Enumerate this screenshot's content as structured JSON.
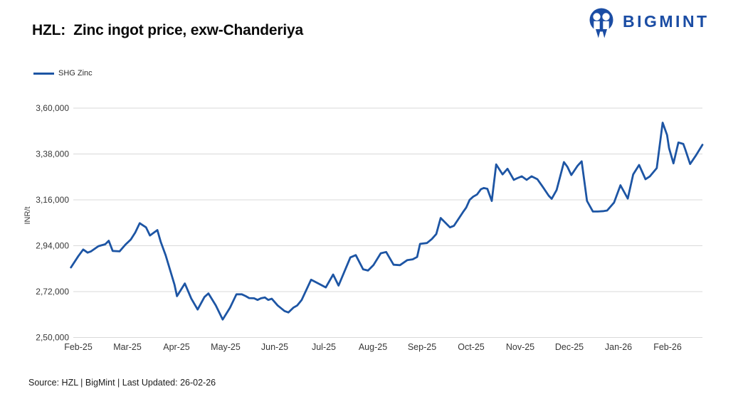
{
  "header": {
    "title": "HZL:  Zinc ingot price, exw-Chanderiya"
  },
  "logo": {
    "text": "BIGMINT",
    "color": "#1b4da4",
    "icon": "bigmint-people-circle-icon"
  },
  "legend": {
    "items": [
      {
        "label": "SHG Zinc",
        "color": "#1d55a4"
      }
    ]
  },
  "footer": {
    "text": "Source: HZL | BigMint | Last Updated: 26-02-26"
  },
  "chart_data": {
    "type": "line",
    "title": "HZL: Zinc ingot price, exw-Chanderiya",
    "xlabel": "",
    "ylabel": "INR/t",
    "ylim": [
      250000,
      360000
    ],
    "grid": "horizontal",
    "gridline_color": "#d9d9d9",
    "legend_position": "top-left",
    "x_unit": "month-index (0 = Feb-25, 12 = Feb-26)",
    "y_ticks": [
      {
        "value": 360000,
        "label": "3,60,000"
      },
      {
        "value": 338000,
        "label": "3,38,000"
      },
      {
        "value": 316000,
        "label": "3,16,000"
      },
      {
        "value": 294000,
        "label": "2,94,000"
      },
      {
        "value": 272000,
        "label": "2,72,000"
      },
      {
        "value": 250000,
        "label": "2,50,000"
      }
    ],
    "x_ticks": [
      {
        "m": 0,
        "label": "Feb-25"
      },
      {
        "m": 1,
        "label": "Mar-25"
      },
      {
        "m": 2,
        "label": "Apr-25"
      },
      {
        "m": 3,
        "label": "May-25"
      },
      {
        "m": 4,
        "label": "Jun-25"
      },
      {
        "m": 5,
        "label": "Jul-25"
      },
      {
        "m": 6,
        "label": "Aug-25"
      },
      {
        "m": 7,
        "label": "Sep-25"
      },
      {
        "m": 8,
        "label": "Oct-25"
      },
      {
        "m": 9,
        "label": "Nov-25"
      },
      {
        "m": 10,
        "label": "Dec-25"
      },
      {
        "m": 11,
        "label": "Jan-26"
      },
      {
        "m": 12,
        "label": "Feb-26"
      }
    ],
    "series": [
      {
        "name": "SHG Zinc",
        "color": "#1d55a4",
        "unit": "INR/t",
        "points": [
          [
            -0.15,
            283600
          ],
          [
            0.0,
            289000
          ],
          [
            0.1,
            292200
          ],
          [
            0.19,
            290700
          ],
          [
            0.26,
            291300
          ],
          [
            0.41,
            293800
          ],
          [
            0.55,
            294700
          ],
          [
            0.62,
            296400
          ],
          [
            0.7,
            291500
          ],
          [
            0.84,
            291300
          ],
          [
            0.96,
            294500
          ],
          [
            1.07,
            297000
          ],
          [
            1.16,
            300300
          ],
          [
            1.25,
            304800
          ],
          [
            1.38,
            302800
          ],
          [
            1.46,
            298900
          ],
          [
            1.54,
            300300
          ],
          [
            1.61,
            301500
          ],
          [
            1.68,
            295800
          ],
          [
            1.78,
            289400
          ],
          [
            1.96,
            275300
          ],
          [
            2.01,
            269800
          ],
          [
            2.17,
            275900
          ],
          [
            2.3,
            268700
          ],
          [
            2.43,
            263400
          ],
          [
            2.57,
            269400
          ],
          [
            2.65,
            271100
          ],
          [
            2.8,
            265400
          ],
          [
            2.94,
            258600
          ],
          [
            3.09,
            264300
          ],
          [
            3.22,
            270700
          ],
          [
            3.33,
            270700
          ],
          [
            3.41,
            269800
          ],
          [
            3.48,
            268900
          ],
          [
            3.58,
            268800
          ],
          [
            3.65,
            268000
          ],
          [
            3.72,
            268800
          ],
          [
            3.8,
            269200
          ],
          [
            3.87,
            268000
          ],
          [
            3.94,
            268600
          ],
          [
            4.06,
            265400
          ],
          [
            4.2,
            262700
          ],
          [
            4.28,
            262000
          ],
          [
            4.38,
            264300
          ],
          [
            4.46,
            265400
          ],
          [
            4.55,
            268000
          ],
          [
            4.74,
            277700
          ],
          [
            4.88,
            276000
          ],
          [
            5.04,
            274000
          ],
          [
            5.19,
            280200
          ],
          [
            5.3,
            274900
          ],
          [
            5.54,
            288400
          ],
          [
            5.65,
            289500
          ],
          [
            5.8,
            282700
          ],
          [
            5.9,
            282100
          ],
          [
            6.01,
            284700
          ],
          [
            6.16,
            290400
          ],
          [
            6.27,
            291000
          ],
          [
            6.42,
            284900
          ],
          [
            6.55,
            284700
          ],
          [
            6.7,
            287100
          ],
          [
            6.81,
            287500
          ],
          [
            6.9,
            288600
          ],
          [
            6.96,
            294900
          ],
          [
            7.1,
            295300
          ],
          [
            7.2,
            297200
          ],
          [
            7.29,
            299600
          ],
          [
            7.38,
            307300
          ],
          [
            7.57,
            302800
          ],
          [
            7.65,
            303600
          ],
          [
            7.77,
            307800
          ],
          [
            7.83,
            310000
          ],
          [
            7.9,
            312300
          ],
          [
            7.97,
            316000
          ],
          [
            8.04,
            317500
          ],
          [
            8.12,
            318600
          ],
          [
            8.2,
            321100
          ],
          [
            8.26,
            321700
          ],
          [
            8.33,
            321300
          ],
          [
            8.42,
            315500
          ],
          [
            8.51,
            333000
          ],
          [
            8.64,
            328200
          ],
          [
            8.74,
            330900
          ],
          [
            8.87,
            325600
          ],
          [
            8.94,
            326400
          ],
          [
            9.03,
            327300
          ],
          [
            9.13,
            325600
          ],
          [
            9.23,
            327300
          ],
          [
            9.35,
            325900
          ],
          [
            9.46,
            322200
          ],
          [
            9.58,
            318000
          ],
          [
            9.64,
            316500
          ],
          [
            9.74,
            320700
          ],
          [
            9.89,
            334100
          ],
          [
            9.96,
            331900
          ],
          [
            10.04,
            327900
          ],
          [
            10.17,
            332400
          ],
          [
            10.25,
            334500
          ],
          [
            10.36,
            315500
          ],
          [
            10.48,
            310400
          ],
          [
            10.58,
            310400
          ],
          [
            10.7,
            310600
          ],
          [
            10.77,
            310900
          ],
          [
            10.91,
            314700
          ],
          [
            11.04,
            323000
          ],
          [
            11.19,
            316600
          ],
          [
            11.3,
            328200
          ],
          [
            11.42,
            332700
          ],
          [
            11.55,
            325900
          ],
          [
            11.64,
            327300
          ],
          [
            11.78,
            331200
          ],
          [
            11.9,
            353000
          ],
          [
            11.99,
            347100
          ],
          [
            12.03,
            340800
          ],
          [
            12.12,
            333500
          ],
          [
            12.22,
            343500
          ],
          [
            12.32,
            342800
          ],
          [
            12.36,
            340300
          ],
          [
            12.46,
            333200
          ],
          [
            12.58,
            337400
          ],
          [
            12.71,
            342400
          ]
        ]
      }
    ]
  }
}
